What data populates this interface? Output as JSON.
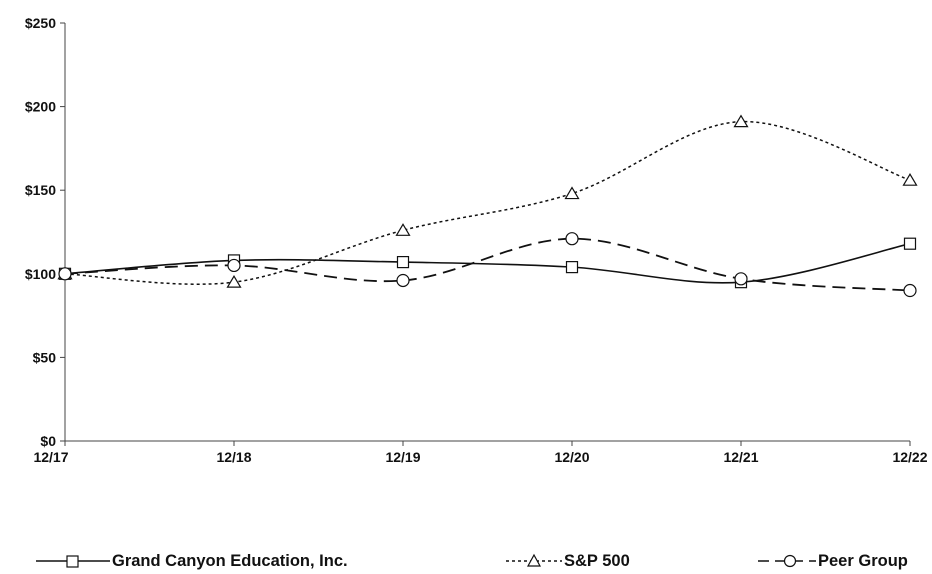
{
  "chart_data": {
    "type": "line",
    "categories": [
      "12/17",
      "12/18",
      "12/19",
      "12/20",
      "12/21",
      "12/22"
    ],
    "series": [
      {
        "name": "Grand Canyon Education, Inc.",
        "values": [
          100,
          108,
          107,
          104,
          95,
          118
        ],
        "marker": "square",
        "dash": "solid"
      },
      {
        "name": "S&P 500",
        "values": [
          100,
          95,
          126,
          148,
          191,
          156
        ],
        "marker": "triangle",
        "dash": "dotted"
      },
      {
        "name": "Peer Group",
        "values": [
          100,
          105,
          96,
          121,
          97,
          90
        ],
        "marker": "circle",
        "dash": "dashed"
      }
    ],
    "y_ticks": [
      "$0",
      "$50",
      "$100",
      "$150",
      "$200",
      "$250"
    ],
    "ylim": [
      0,
      250
    ],
    "grid": false,
    "legend_position": "bottom",
    "colors": {
      "line": "#111111",
      "axis": "#444444"
    }
  }
}
